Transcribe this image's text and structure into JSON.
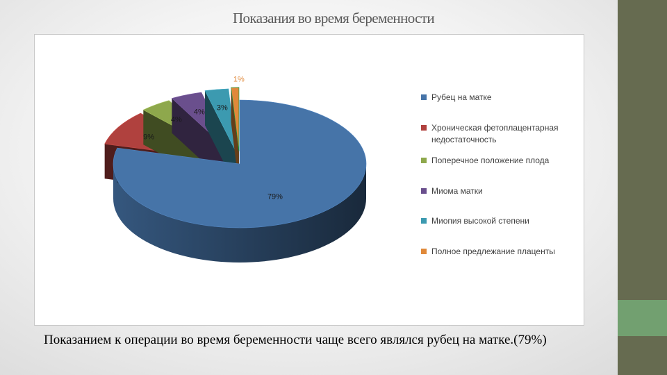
{
  "slide": {
    "title": "Показания во время беременности",
    "caption": "Показанием к операции во время беременности чаще всего являлся рубец на матке.(79%)"
  },
  "colors": {
    "sidebar": "#666b50",
    "sidebar_accent": "#72a070"
  },
  "chart_data": {
    "type": "pie",
    "title": "",
    "legend_position": "right",
    "series": [
      {
        "name": "Рубец на матке",
        "value": 79,
        "label": "79%",
        "color": "#4674a8"
      },
      {
        "name": "Хроническая фетоплацентарная недостаточность",
        "value": 9,
        "label": "9%",
        "color": "#b0413e"
      },
      {
        "name": "Поперечное положение плода",
        "value": 4,
        "label": "4%",
        "color": "#8ea84c"
      },
      {
        "name": "Миома матки",
        "value": 4,
        "label": "4%",
        "color": "#6a4f8d"
      },
      {
        "name": "Миопия высокой степени",
        "value": 3,
        "label": "3%",
        "color": "#3c9ab0"
      },
      {
        "name": "Полное предлежание плаценты",
        "value": 1,
        "label": "1%",
        "color": "#e0893a"
      }
    ]
  }
}
